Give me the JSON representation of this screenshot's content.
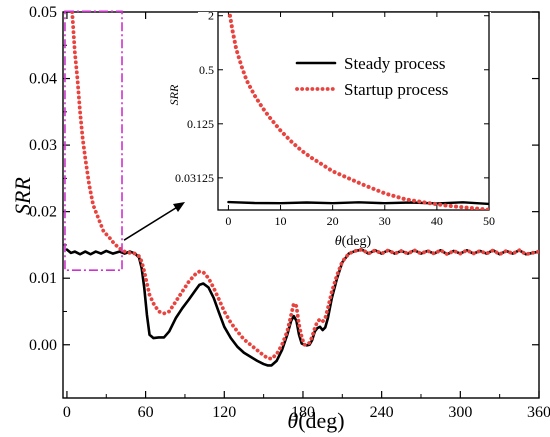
{
  "chart_data": [
    {
      "type": "line",
      "title": "",
      "xlabel_symbol": "θ",
      "xlabel_unit": "(deg)",
      "ylabel": "SRR",
      "xlim": [
        -3,
        360
      ],
      "ylim": [
        -0.008,
        0.05
      ],
      "xticks": [
        0,
        60,
        120,
        180,
        240,
        300,
        360
      ],
      "xtick_labels": [
        "0",
        "60",
        "120",
        "180",
        "240",
        "300",
        "360"
      ],
      "yticks": [
        0.0,
        0.01,
        0.02,
        0.03,
        0.04,
        0.05
      ],
      "ytick_labels": [
        "0.00",
        "0.01",
        "0.02",
        "0.03",
        "0.04",
        "0.05"
      ],
      "series": [
        {
          "name": "Steady process",
          "color": "#000000",
          "style": "solid",
          "x": [
            0,
            3,
            6,
            10,
            14,
            18,
            22,
            26,
            30,
            35,
            40,
            44,
            48,
            52,
            55,
            57,
            59,
            61,
            63,
            66,
            70,
            74,
            78,
            83,
            88,
            93,
            98,
            101,
            104,
            108,
            112,
            116,
            120,
            125,
            130,
            135,
            140,
            145,
            150,
            153,
            156,
            160,
            164,
            168,
            171,
            173,
            175,
            177,
            179,
            181,
            183,
            185,
            187,
            189,
            191,
            193,
            195,
            197,
            199,
            202,
            206,
            210,
            215,
            220,
            225,
            230,
            235,
            240,
            245,
            250,
            255,
            260,
            265,
            270,
            275,
            280,
            285,
            290,
            295,
            300,
            305,
            310,
            315,
            320,
            325,
            330,
            335,
            340,
            345,
            350,
            355,
            360
          ],
          "values": [
            0.0143,
            0.0138,
            0.014,
            0.0136,
            0.014,
            0.0136,
            0.014,
            0.0137,
            0.0141,
            0.0137,
            0.014,
            0.0137,
            0.014,
            0.0137,
            0.0131,
            0.0115,
            0.0085,
            0.0045,
            0.0015,
            0.001,
            0.0011,
            0.0011,
            0.002,
            0.004,
            0.0055,
            0.0068,
            0.0082,
            0.009,
            0.0092,
            0.0086,
            0.007,
            0.0048,
            0.0027,
            0.001,
            -0.0003,
            -0.0012,
            -0.0018,
            -0.0024,
            -0.0029,
            -0.0031,
            -0.0031,
            -0.0024,
            -0.0008,
            0.0015,
            0.0036,
            0.0043,
            0.0036,
            0.0015,
            0.0002,
            0.0,
            -0.0001,
            0.0,
            0.0007,
            0.002,
            0.0025,
            0.0027,
            0.0022,
            0.0026,
            0.004,
            0.007,
            0.01,
            0.0124,
            0.0137,
            0.0141,
            0.0143,
            0.0137,
            0.0142,
            0.0137,
            0.0142,
            0.0137,
            0.0141,
            0.0137,
            0.0142,
            0.0137,
            0.0141,
            0.0137,
            0.0142,
            0.0136,
            0.0141,
            0.0137,
            0.0142,
            0.0137,
            0.0141,
            0.0137,
            0.0142,
            0.0136,
            0.0141,
            0.0137,
            0.0142,
            0.0136,
            0.0138,
            0.014
          ]
        },
        {
          "name": "Startup process",
          "color": "#e8433e",
          "style": "dotted",
          "x": [
            4,
            5,
            6,
            8,
            10,
            12,
            14,
            17,
            20,
            24,
            28,
            32,
            36,
            40,
            44,
            48,
            52,
            55,
            57,
            59,
            61,
            63,
            66,
            70,
            74,
            78,
            83,
            88,
            93,
            98,
            101,
            104,
            108,
            112,
            116,
            120,
            125,
            130,
            135,
            140,
            145,
            150,
            153,
            156,
            160,
            164,
            168,
            171,
            173,
            175,
            177,
            179,
            181,
            183,
            185,
            187,
            189,
            191,
            193,
            195,
            197,
            199,
            202,
            206,
            210,
            215,
            220,
            225,
            230,
            235,
            240,
            245,
            250,
            255,
            260,
            265,
            270,
            275,
            280,
            285,
            290,
            295,
            300,
            305,
            310,
            315,
            320,
            325,
            330,
            335,
            340,
            345,
            350,
            355,
            360
          ],
          "values": [
            0.05,
            0.047,
            0.044,
            0.04,
            0.035,
            0.031,
            0.028,
            0.024,
            0.021,
            0.019,
            0.017,
            0.0162,
            0.0152,
            0.0145,
            0.014,
            0.0138,
            0.0137,
            0.0133,
            0.0125,
            0.011,
            0.0092,
            0.0075,
            0.0062,
            0.005,
            0.0047,
            0.005,
            0.0065,
            0.008,
            0.0095,
            0.0106,
            0.011,
            0.0109,
            0.01,
            0.0085,
            0.0068,
            0.005,
            0.0033,
            0.002,
            0.0008,
            0.0,
            -0.0008,
            -0.0016,
            -0.002,
            -0.0021,
            -0.0014,
            0.0,
            0.002,
            0.0045,
            0.0062,
            0.0058,
            0.003,
            0.0012,
            0.0,
            0.0,
            0.0003,
            0.0012,
            0.0025,
            0.0035,
            0.0038,
            0.0035,
            0.004,
            0.0055,
            0.008,
            0.0105,
            0.0125,
            0.0137,
            0.0141,
            0.0143,
            0.0137,
            0.0142,
            0.0137,
            0.0142,
            0.0137,
            0.0141,
            0.0137,
            0.0142,
            0.0137,
            0.0141,
            0.0137,
            0.0142,
            0.0136,
            0.0141,
            0.0137,
            0.0142,
            0.0137,
            0.0141,
            0.0137,
            0.0142,
            0.0136,
            0.0141,
            0.0137,
            0.0142,
            0.0136,
            0.0138,
            0.014
          ]
        }
      ],
      "legend": {
        "position": "top-right",
        "entries": [
          "Steady process",
          "Startup process"
        ]
      },
      "highlight_box": {
        "x": [
          -1.5,
          42
        ],
        "y": [
          0.0112,
          0.0501
        ],
        "color": "#cc33cc"
      }
    },
    {
      "type": "line",
      "role": "inset",
      "xlabel_symbol": "θ",
      "xlabel_unit": "(deg)",
      "ylabel": "SRR",
      "yscale": "log2",
      "xlim": [
        -2,
        50
      ],
      "ylim": [
        0.0137,
        2.2
      ],
      "xticks": [
        0,
        10,
        20,
        30,
        40,
        50
      ],
      "xtick_labels": [
        "0",
        "10",
        "20",
        "30",
        "40",
        "50"
      ],
      "yticks": [
        0.03125,
        0.125,
        0.5,
        2
      ],
      "ytick_labels": [
        "0.03125",
        "0.125",
        "0.5",
        "2"
      ],
      "series": [
        {
          "name": "Steady process",
          "color": "#000000",
          "style": "solid",
          "x": [
            0,
            5,
            10,
            15,
            20,
            25,
            30,
            35,
            40,
            45,
            50
          ],
          "values": [
            0.0168,
            0.0164,
            0.0163,
            0.0166,
            0.0163,
            0.0167,
            0.0163,
            0.0166,
            0.0162,
            0.0167,
            0.016
          ]
        },
        {
          "name": "Startup process",
          "color": "#e8433e",
          "style": "dotted",
          "x": [
            0.3,
            0.8,
            1.5,
            2.5,
            3.5,
            5,
            6.5,
            8,
            10,
            12,
            14,
            16,
            18,
            20,
            23,
            26,
            30,
            34,
            38,
            42,
            46,
            50
          ],
          "values": [
            2.0,
            1.35,
            0.85,
            0.55,
            0.38,
            0.26,
            0.19,
            0.145,
            0.105,
            0.08,
            0.063,
            0.052,
            0.044,
            0.037,
            0.031,
            0.026,
            0.021,
            0.018,
            0.0165,
            0.0153,
            0.0145,
            0.0138
          ]
        }
      ]
    }
  ]
}
